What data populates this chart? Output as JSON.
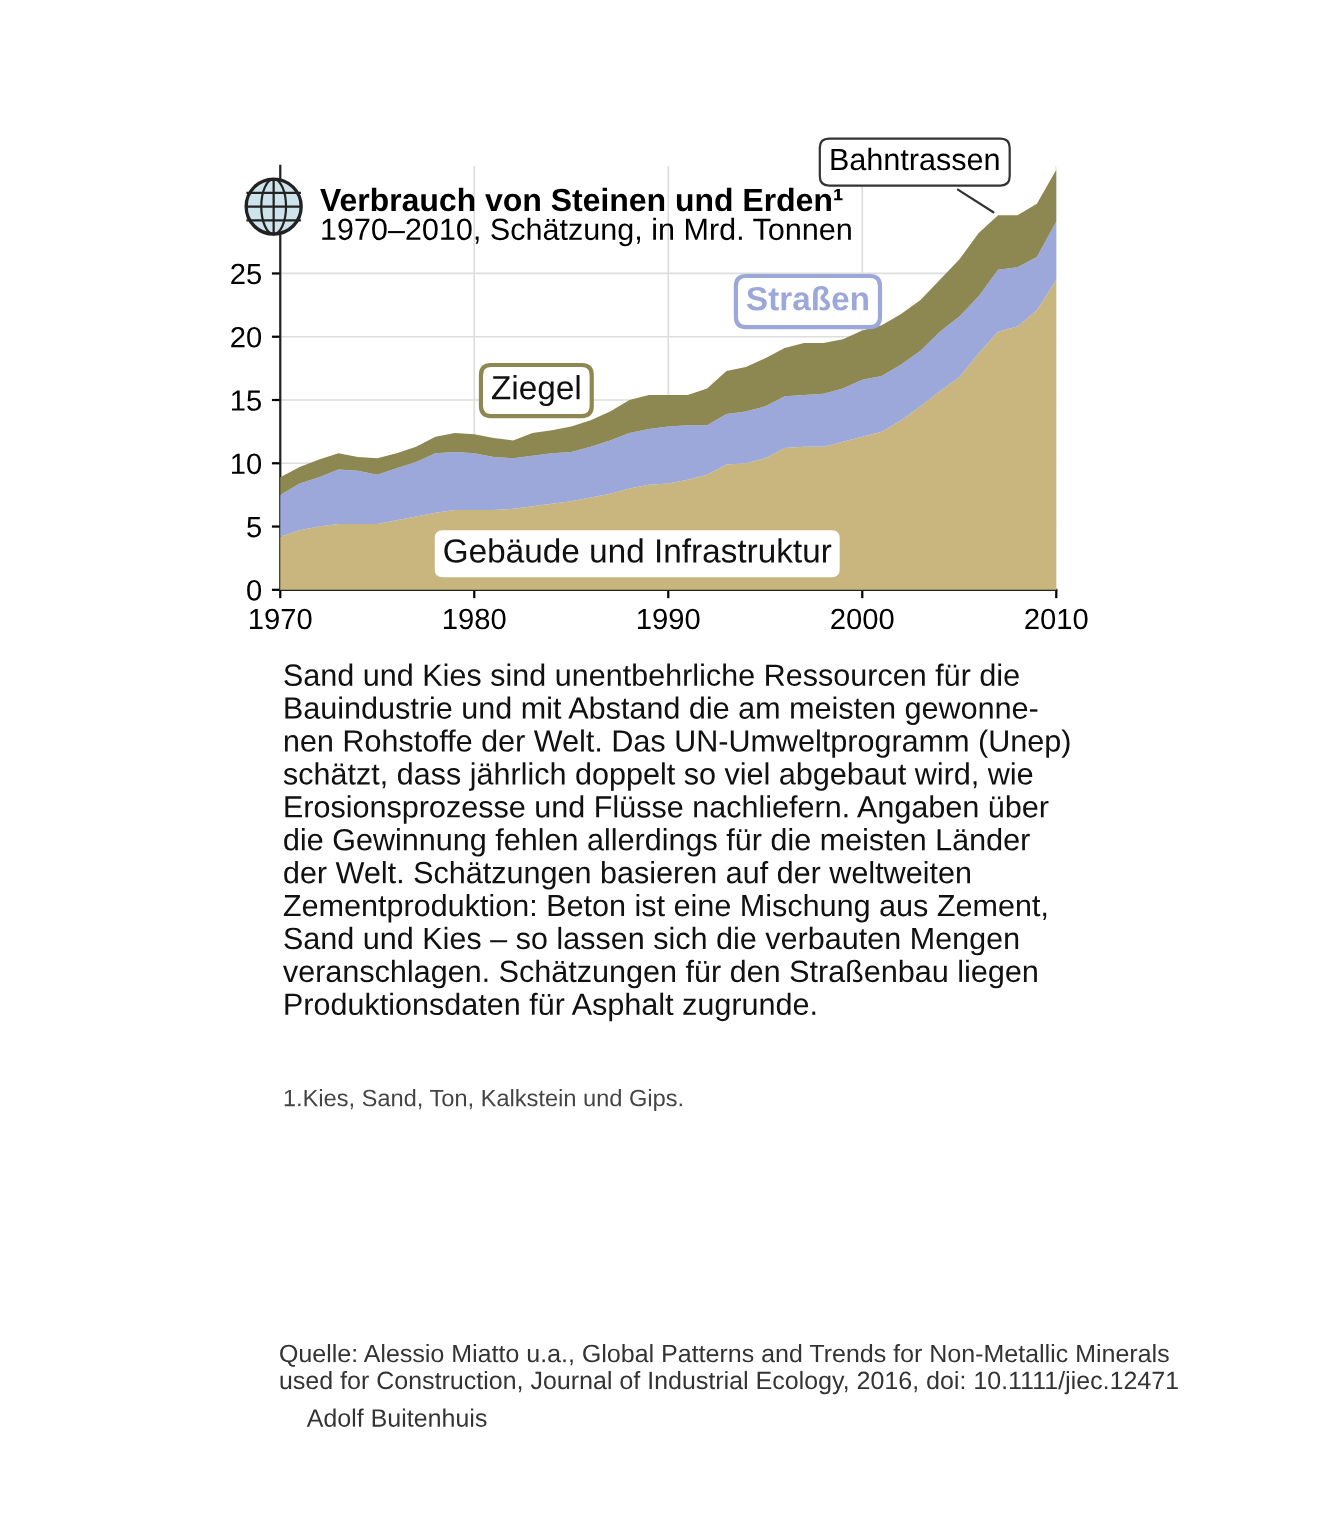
{
  "chart_data": {
    "type": "area",
    "stacked": true,
    "title": "Verbrauch von Steinen und Erden¹",
    "subtitle": "1970–2010, Schätzung, in Mrd. Tonnen",
    "x": [
      1970,
      1971,
      1972,
      1973,
      1974,
      1975,
      1976,
      1977,
      1978,
      1979,
      1980,
      1981,
      1982,
      1983,
      1984,
      1985,
      1986,
      1987,
      1988,
      1989,
      1990,
      1991,
      1992,
      1993,
      1994,
      1995,
      1996,
      1997,
      1998,
      1999,
      2000,
      2001,
      2002,
      2003,
      2004,
      2005,
      2006,
      2007,
      2008,
      2009,
      2010
    ],
    "series": [
      {
        "name": "Gebäude und Infrastruktur",
        "color": "#c9b67e",
        "values": [
          4.2,
          4.7,
          5.0,
          5.2,
          5.2,
          5.2,
          5.5,
          5.8,
          6.1,
          6.3,
          6.3,
          6.3,
          6.4,
          6.6,
          6.8,
          7.0,
          7.3,
          7.6,
          8.0,
          8.3,
          8.4,
          8.7,
          9.1,
          9.9,
          10.0,
          10.4,
          11.2,
          11.3,
          11.3,
          11.7,
          12.1,
          12.5,
          13.4,
          14.5,
          15.7,
          16.8,
          18.7,
          20.4,
          20.8,
          22.1,
          24.5
        ]
      },
      {
        "name": "Straßen",
        "color": "#9ba8d9",
        "values": [
          3.3,
          3.7,
          3.9,
          4.3,
          4.2,
          3.9,
          4.1,
          4.3,
          4.7,
          4.6,
          4.5,
          4.2,
          4.0,
          4.0,
          4.0,
          3.9,
          4.0,
          4.2,
          4.4,
          4.4,
          4.5,
          4.3,
          3.9,
          4.0,
          4.1,
          4.1,
          4.1,
          4.1,
          4.2,
          4.2,
          4.5,
          4.4,
          4.4,
          4.4,
          4.7,
          4.8,
          4.5,
          4.9,
          4.7,
          4.2,
          4.6
        ]
      },
      {
        "name": "Ziegel",
        "color": "#8d8752",
        "values": [
          1.4,
          1.3,
          1.4,
          1.3,
          1.1,
          1.3,
          1.2,
          1.2,
          1.3,
          1.5,
          1.5,
          1.5,
          1.4,
          1.8,
          1.8,
          2.0,
          2.1,
          2.3,
          2.6,
          2.7,
          2.5,
          2.4,
          2.9,
          3.4,
          3.5,
          3.8,
          3.8,
          4.1,
          4.0,
          3.9,
          3.9,
          4.0,
          4.0,
          4.0,
          4.1,
          4.5,
          5.0,
          4.3,
          4.1,
          4.2,
          4.1
        ]
      }
    ],
    "xlim": [
      1970,
      2010
    ],
    "xticks": [
      1970,
      1980,
      1990,
      2000,
      2010
    ],
    "ylim": [
      0,
      33.5
    ],
    "yticks": [
      0,
      5,
      10,
      15,
      20,
      25
    ],
    "grid": true,
    "legend": false,
    "annotations": [
      {
        "text": "Bahntrassen",
        "x": 2007,
        "y": 29.6
      },
      "Sand und Kies sind unentbehrliche Ressourcen für die\nBauindustrie und mit Abstand die am meisten gewonne-\nnen Rohstoffe der Welt. Das UN-Umweltprogramm (Unep)\nschätzt, dass jährlich doppelt so viel abgebaut wird, wie\nErosionsprozesse und Flüsse nachliefern. Angaben über\ndie Gewinnung fehlen allerdings für die meisten Länder\nder Welt. Schätzungen basieren auf der weltweiten\nZementproduktion: Beton ist eine Mischung aus Zement,\nSand und Kies – so lassen sich die verbauten Mengen\nveranschlagen. Schätzungen für den Straßenbau liegen\nProduktionsdaten für Asphalt zugrunde.",
      "1.Kies, Sand, Ton, Kalkstein und Gips.",
      "Quelle: Alessio Miatto u.a., Global Patterns and Trends for Non-Metallic Minerals\nused for Construction, Journal of Industrial Ecology, 2016, doi: 10.1111/jiec.12471",
      "Adolf Buitenhuis"
    ]
  }
}
